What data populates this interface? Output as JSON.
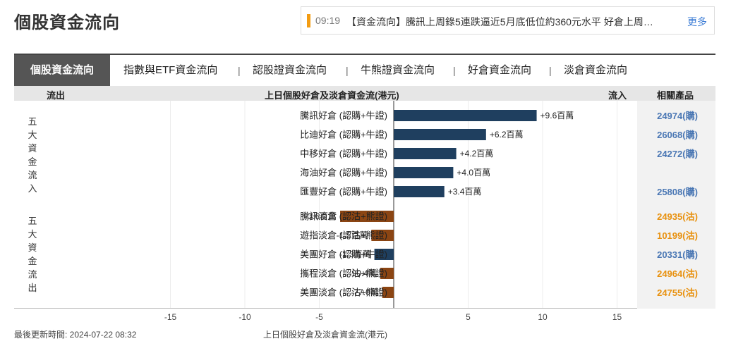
{
  "page": {
    "title": "個股資金流向"
  },
  "ticker": {
    "time": "09:19",
    "headline": "【資金流向】騰訊上周錄5連跌逼近5月底低位約360元水平 好倉上周…",
    "more": "更多"
  },
  "tabs": {
    "active": "個股資金流向",
    "items": [
      "指數與ETF資金流向",
      "認股證資金流向",
      "牛熊證資金流向",
      "好倉資金流向",
      "淡倉資金流向"
    ],
    "separator": "|"
  },
  "header": {
    "outflow": "流出",
    "center": "上日個股好倉及淡倉資金流(港元)",
    "inflow": "流入",
    "related": "相關產品"
  },
  "groups": {
    "inflow": "五大資金流入",
    "outflow": "五大資金流出"
  },
  "footer": {
    "updated": "最後更新時間: 2024-07-22 08:32",
    "xlabel": "上日個股好倉及淡倉資金流(港元)"
  },
  "colors": {
    "positive": "#1f3f5f",
    "negative": "#8b4513",
    "bull_product": "#4a77b4",
    "bear_product": "#e8910f"
  },
  "chart_data": {
    "type": "bar",
    "orientation": "horizontal",
    "xlim": [
      -18,
      18
    ],
    "xticks": [
      -15,
      -10,
      -5,
      5,
      10,
      15
    ],
    "unit": "百萬港元",
    "grid": true,
    "rows": [
      {
        "category": "騰訊好倉 (認購+牛證)",
        "value": 9.6,
        "label": "+9.6百萬",
        "product": "24974(購)",
        "product_type": "bull"
      },
      {
        "category": "比迪好倉 (認購+牛證)",
        "value": 6.2,
        "label": "+6.2百萬",
        "product": "26068(購)",
        "product_type": "bull"
      },
      {
        "category": "中移好倉 (認購+牛證)",
        "value": 4.2,
        "label": "+4.2百萬",
        "product": "24272(購)",
        "product_type": "bull"
      },
      {
        "category": "海油好倉 (認購+牛證)",
        "value": 4.0,
        "label": "+4.0百萬",
        "product": "",
        "product_type": "bull"
      },
      {
        "category": "匯豐好倉 (認購+牛證)",
        "value": 3.4,
        "label": "+3.4百萬",
        "product": "25808(購)",
        "product_type": "bull"
      },
      {
        "category": "騰訊淡倉 (認沽+熊證)",
        "value": -3.6,
        "label": "-3.6百萬",
        "product": "24935(沽)",
        "product_type": "bear"
      },
      {
        "category": "遊指淡倉 (認沽+熊證)",
        "value": -1.5,
        "label": "-1.5百萬",
        "product": "10199(沽)",
        "product_type": "bear"
      },
      {
        "category": "美團好倉 (認購+牛證)",
        "value": -1.3,
        "label": "-1.3百萬",
        "product": "20331(購)",
        "product_type": "bull"
      },
      {
        "category": "攜程淡倉 (認沽+熊證)",
        "value": -0.904,
        "label": "-90.4萬",
        "product": "24964(沽)",
        "product_type": "bear"
      },
      {
        "category": "美團淡倉 (認沽+熊證)",
        "value": -0.77,
        "label": "-77.0萬",
        "product": "24755(沽)",
        "product_type": "bear"
      }
    ]
  }
}
